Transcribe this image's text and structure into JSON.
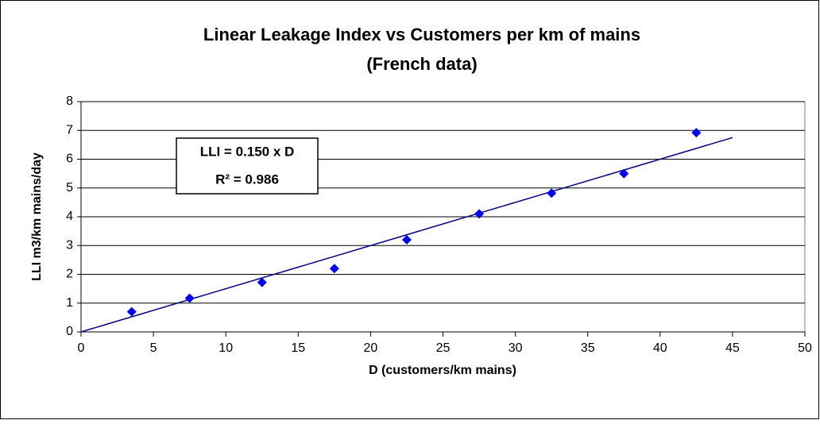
{
  "chart_data": {
    "type": "scatter",
    "title": "Linear Leakage Index vs Customers per km of mains",
    "subtitle": "(French data)",
    "x_label": "D (customers/km mains)",
    "y_label": "LLI m3/km mains/day",
    "annotations": [
      "LLI = 0.150 x D",
      "R² = 0.986"
    ],
    "x": [
      3.5,
      7.5,
      12.5,
      17.5,
      22.5,
      27.5,
      32.5,
      37.5,
      42.5
    ],
    "values": [
      0.7,
      1.17,
      1.72,
      2.2,
      3.2,
      4.1,
      4.82,
      5.5,
      6.92
    ],
    "color": "#0000ff",
    "trend": {
      "x": [
        0,
        45
      ],
      "values": [
        0,
        6.75
      ],
      "color": "#000080"
    },
    "xlim": [
      0,
      50
    ],
    "xticks": [
      0,
      5,
      10,
      15,
      20,
      25,
      30,
      35,
      40,
      45,
      50
    ],
    "ylim": [
      0,
      8
    ],
    "yticks": [
      0,
      1,
      2,
      3,
      4,
      5,
      6,
      7,
      8
    ],
    "grid": true
  }
}
